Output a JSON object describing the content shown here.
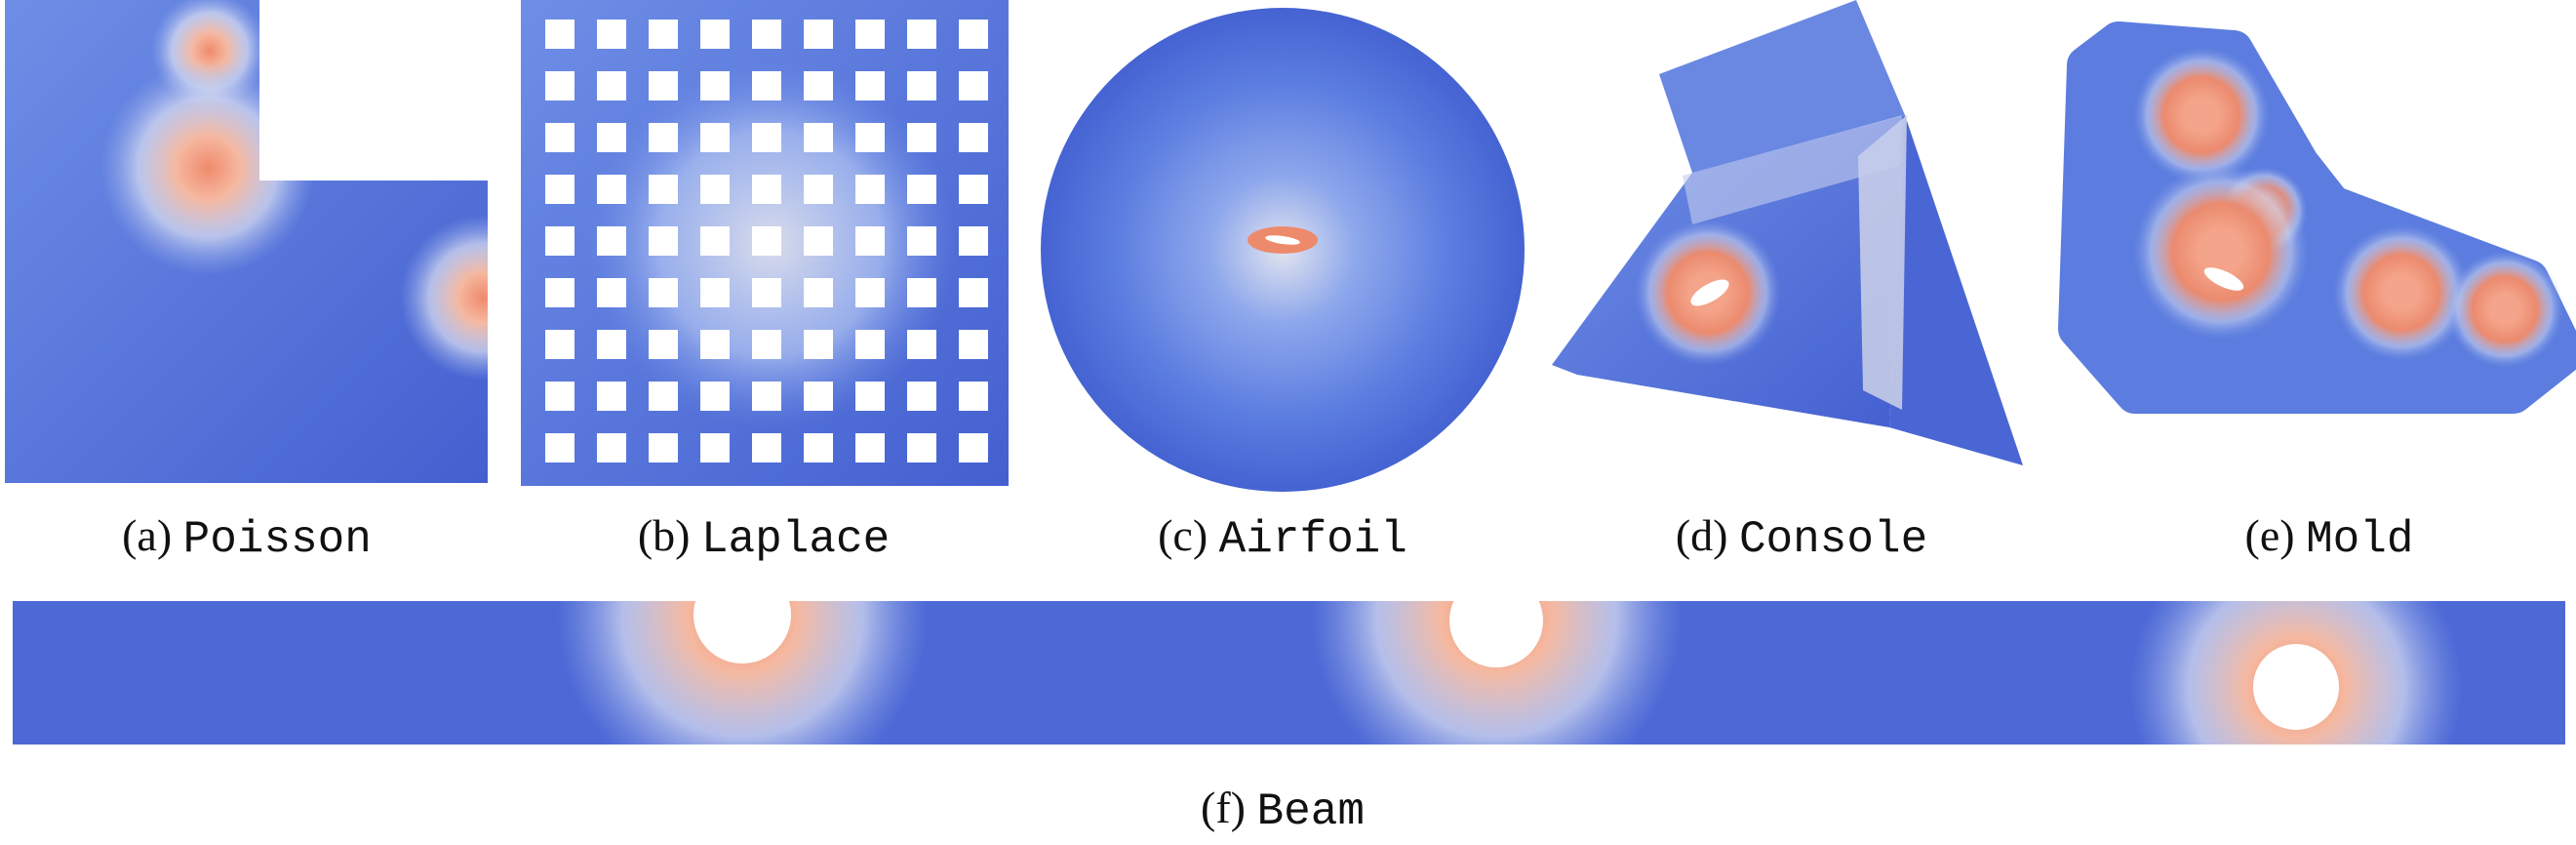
{
  "panels": [
    {
      "label": "(a)",
      "name": "Poisson"
    },
    {
      "label": "(b)",
      "name": "Laplace"
    },
    {
      "label": "(c)",
      "name": "Airfoil"
    },
    {
      "label": "(d)",
      "name": "Console"
    },
    {
      "label": "(e)",
      "name": "Mold"
    },
    {
      "label": "(f)",
      "name": "Beam"
    }
  ]
}
